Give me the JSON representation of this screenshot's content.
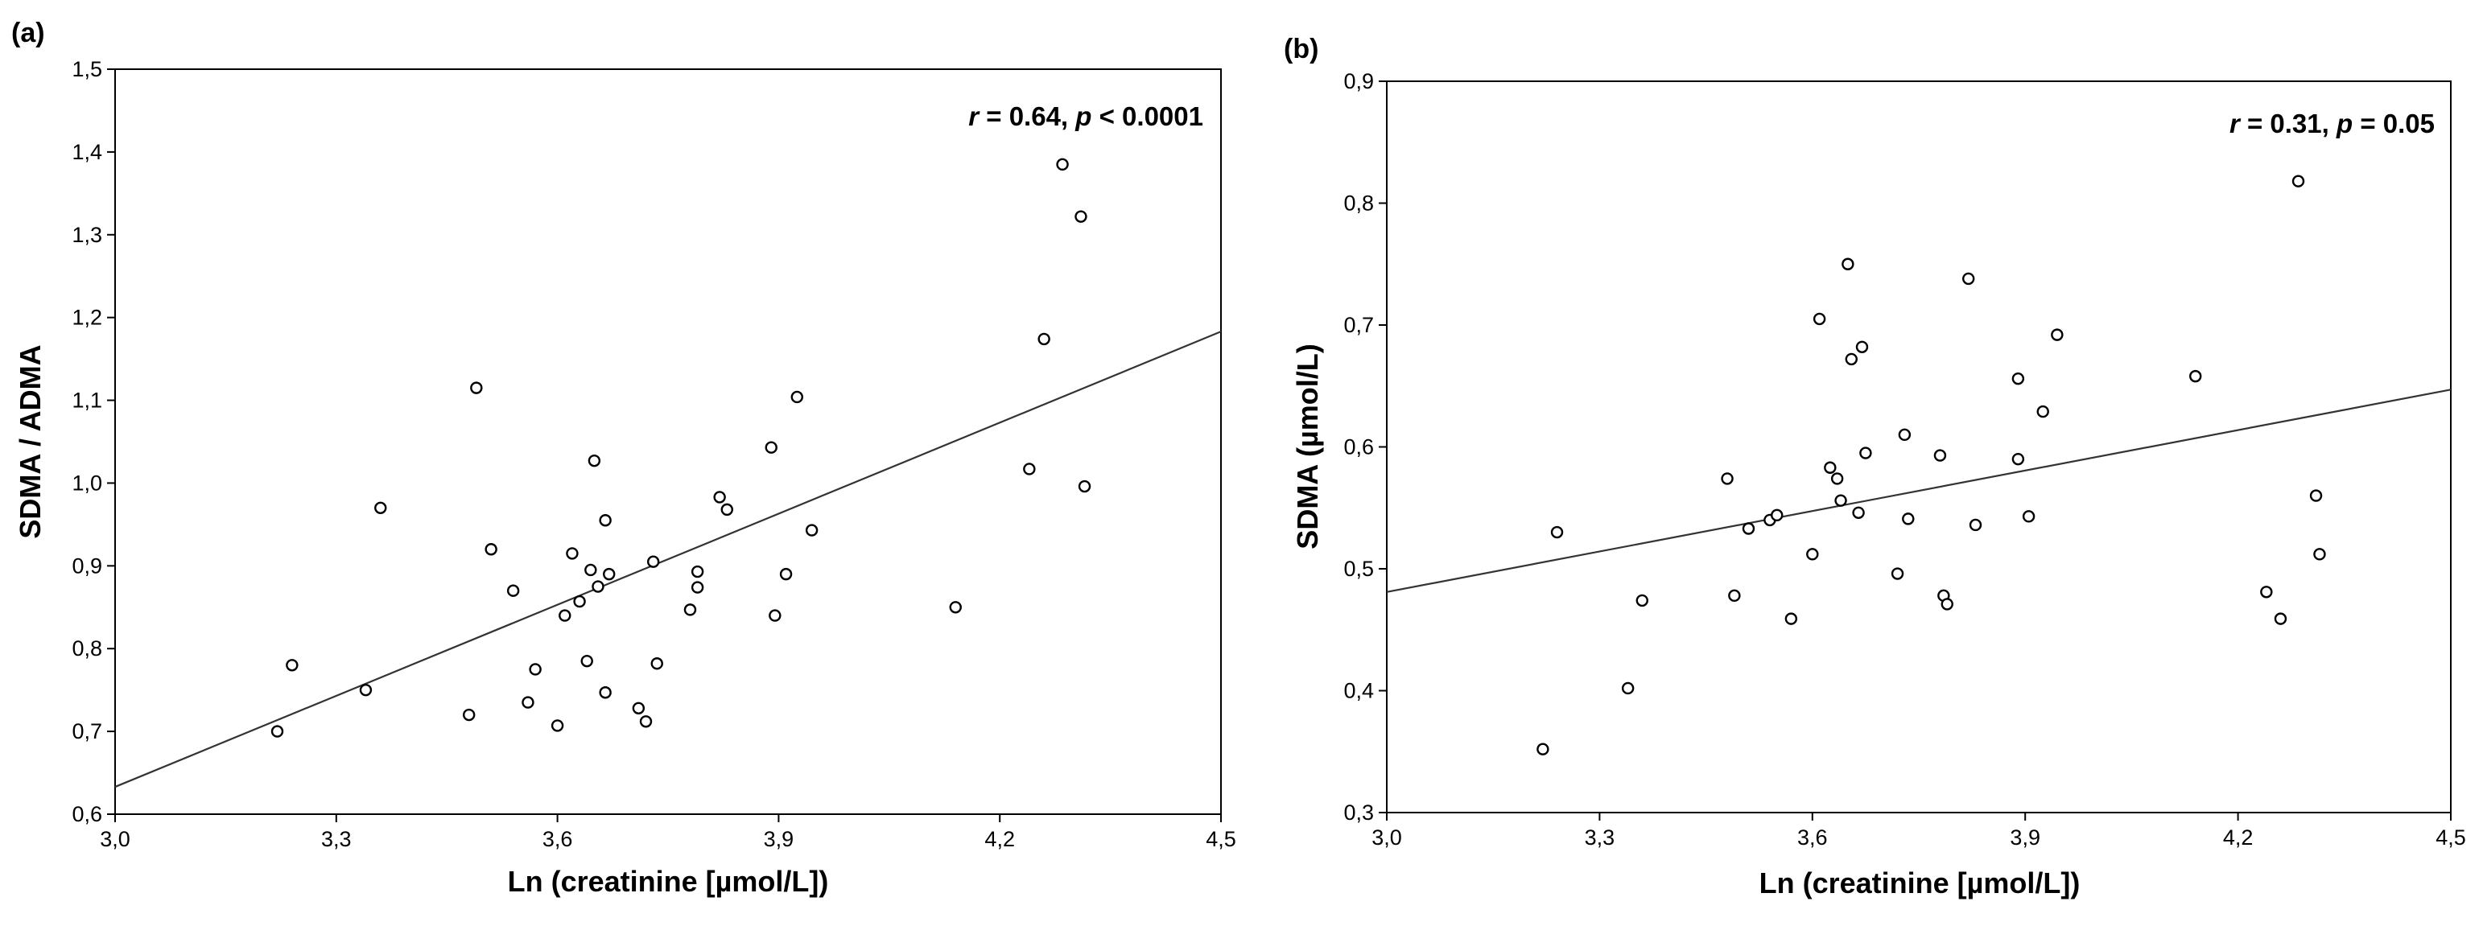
{
  "chart_data": [
    {
      "type": "scatter",
      "panel_label": "(a)",
      "xlabel": "Ln (creatinine [µmol/L])",
      "ylabel": "SDMA / ADMA",
      "xlim": [
        3.0,
        4.5
      ],
      "ylim": [
        0.6,
        1.5
      ],
      "xticks": [
        "3,0",
        "3,3",
        "3,6",
        "3,9",
        "4,2",
        "4,5"
      ],
      "yticks": [
        "0,6",
        "0,7",
        "0,8",
        "0,9",
        "1,0",
        "1,1",
        "1,2",
        "1,3",
        "1,4",
        "1,5"
      ],
      "annotation": {
        "r_sym": "r",
        "r_val": " = 0.64, ",
        "p_sym": "p",
        "p_val": " < 0.0001"
      },
      "regression_line": {
        "x": [
          3.0,
          4.5
        ],
        "y": [
          0.633,
          1.183
        ]
      },
      "grid": false,
      "points": {
        "x": [
          3.22,
          3.24,
          3.34,
          3.36,
          3.48,
          3.49,
          3.51,
          3.54,
          3.56,
          3.57,
          3.6,
          3.61,
          3.62,
          3.63,
          3.64,
          3.645,
          3.65,
          3.655,
          3.665,
          3.665,
          3.67,
          3.71,
          3.72,
          3.73,
          3.735,
          3.78,
          3.79,
          3.79,
          3.82,
          3.83,
          3.89,
          3.895,
          3.91,
          3.925,
          3.945,
          4.14,
          4.24,
          4.26,
          4.285,
          4.31,
          4.315
        ],
        "y": [
          0.7,
          0.78,
          0.75,
          0.97,
          0.72,
          1.115,
          0.92,
          0.87,
          0.735,
          0.775,
          0.707,
          0.84,
          0.915,
          0.857,
          0.785,
          0.895,
          1.027,
          0.875,
          0.747,
          0.955,
          0.89,
          0.728,
          0.712,
          0.905,
          0.782,
          0.847,
          0.893,
          0.874,
          0.983,
          0.968,
          1.043,
          0.84,
          0.89,
          1.104,
          0.943,
          0.85,
          1.017,
          1.174,
          1.385,
          1.322,
          0.996
        ]
      }
    },
    {
      "type": "scatter",
      "panel_label": "(b)",
      "xlabel": "Ln (creatinine [µmol/L])",
      "ylabel": "SDMA (µmol/L)",
      "xlim": [
        3.0,
        4.5
      ],
      "ylim": [
        0.3,
        0.9
      ],
      "xticks": [
        "3,0",
        "3,3",
        "3,6",
        "3,9",
        "4,2",
        "4,5"
      ],
      "yticks": [
        "0,3",
        "0,4",
        "0,5",
        "0,6",
        "0,7",
        "0,8",
        "0,9"
      ],
      "annotation": {
        "r_sym": "r",
        "r_val": " = 0.31, ",
        "p_sym": "p",
        "p_val": " = 0.05"
      },
      "regression_line": {
        "x": [
          3.0,
          4.5
        ],
        "y": [
          0.481,
          0.647
        ]
      },
      "grid": false,
      "points": {
        "x": [
          3.22,
          3.24,
          3.34,
          3.36,
          3.48,
          3.49,
          3.51,
          3.54,
          3.55,
          3.57,
          3.6,
          3.61,
          3.625,
          3.635,
          3.64,
          3.65,
          3.655,
          3.665,
          3.67,
          3.675,
          3.72,
          3.73,
          3.735,
          3.78,
          3.785,
          3.79,
          3.82,
          3.83,
          3.89,
          3.89,
          3.905,
          3.925,
          3.945,
          4.14,
          4.24,
          4.26,
          4.285,
          4.31,
          4.315
        ],
        "y": [
          0.352,
          0.53,
          0.402,
          0.474,
          0.574,
          0.478,
          0.533,
          0.54,
          0.544,
          0.459,
          0.512,
          0.705,
          0.583,
          0.574,
          0.556,
          0.75,
          0.672,
          0.546,
          0.682,
          0.595,
          0.496,
          0.61,
          0.541,
          0.593,
          0.478,
          0.471,
          0.738,
          0.536,
          0.59,
          0.656,
          0.543,
          0.629,
          0.692,
          0.658,
          0.481,
          0.459,
          0.818,
          0.56,
          0.512
        ]
      }
    }
  ]
}
